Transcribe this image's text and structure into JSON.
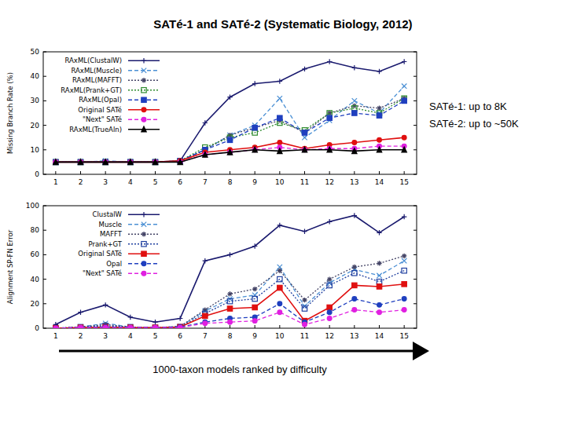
{
  "title": "SATé-1 and SATé-2 (Systematic Biology, 2012)",
  "notes": [
    "SATé-1: up to 8K",
    "SATé-2: up to ~50K"
  ],
  "caption": "1000-taxon models ranked by difficulty",
  "chart_data": [
    {
      "type": "line",
      "y_label": "Missing Branch Rate (%)",
      "x": [
        1,
        2,
        3,
        4,
        5,
        6,
        7,
        8,
        9,
        10,
        11,
        12,
        13,
        14,
        15
      ],
      "xlim": [
        0.5,
        15.5
      ],
      "xticks": [
        1,
        2,
        3,
        4,
        5,
        6,
        7,
        8,
        9,
        10,
        11,
        12,
        13,
        14,
        15
      ],
      "ylim": [
        0,
        50
      ],
      "yticks": [
        0,
        10,
        20,
        30,
        40,
        50
      ],
      "grid": false,
      "legend": "upper left",
      "series": [
        {
          "name": "RAxML(ClustalW)",
          "color": "#1a1a6e",
          "marker": "plus",
          "line_style": "solid",
          "values": [
            5,
            5,
            5,
            5,
            5,
            5.5,
            21,
            31.5,
            37,
            38,
            43,
            46,
            43.5,
            42,
            46
          ]
        },
        {
          "name": "RAxML(Muscle)",
          "color": "#4a8fd4",
          "marker": "x",
          "line_style": "dashed",
          "values": [
            5,
            5,
            5.5,
            5,
            5,
            5.5,
            10,
            16,
            20,
            31,
            15,
            22,
            30,
            25,
            36
          ]
        },
        {
          "name": "RAxML(MAFFT)",
          "color": "#444466",
          "marker": "asterisk",
          "line_style": "dotted",
          "values": [
            5,
            5,
            5,
            5,
            5,
            5.5,
            10,
            16,
            19,
            22,
            17,
            25,
            28,
            27,
            31
          ]
        },
        {
          "name": "RAxML(Prank+GT)",
          "color": "#2e8b2e",
          "marker": "square",
          "line_style": "dotted",
          "values": [
            5,
            5,
            5,
            5,
            5,
            5.5,
            11,
            15,
            17,
            21,
            18,
            25,
            27,
            25,
            31
          ]
        },
        {
          "name": "RAxML(Opal)",
          "color": "#1f3fbf",
          "marker": "filled-square",
          "line_style": "dashed",
          "values": [
            5,
            5,
            5,
            5,
            5,
            5.5,
            10,
            14,
            19,
            23,
            17,
            23,
            25,
            24,
            30
          ]
        },
        {
          "name": "Original SATé",
          "color": "#e01010",
          "marker": "circle",
          "line_style": "solid",
          "values": [
            5,
            5,
            5,
            5,
            5,
            5.5,
            9,
            10,
            11,
            13,
            10.5,
            12,
            13,
            14,
            15
          ]
        },
        {
          "name": "\"Next\" SATé",
          "color": "#e020e0",
          "marker": "circle",
          "line_style": "dashed",
          "values": [
            5,
            5,
            5,
            5,
            5,
            5,
            8,
            9,
            10,
            11,
            10,
            10.5,
            10.5,
            11.5,
            11.5
          ]
        },
        {
          "name": "RAxML(TrueAln)",
          "color": "#000000",
          "marker": "triangle",
          "line_style": "solid",
          "values": [
            5,
            5,
            5,
            5,
            5,
            5,
            8,
            9,
            10,
            9.5,
            10,
            10,
            9.5,
            10,
            10
          ]
        }
      ]
    },
    {
      "type": "line",
      "y_label": "Alignment SP-FN Error",
      "x": [
        1,
        2,
        3,
        4,
        5,
        6,
        7,
        8,
        9,
        10,
        11,
        12,
        13,
        14,
        15
      ],
      "xlim": [
        0.5,
        15.5
      ],
      "xticks": [
        1,
        2,
        3,
        4,
        5,
        6,
        7,
        8,
        9,
        10,
        11,
        12,
        13,
        14,
        15
      ],
      "ylim": [
        0,
        100
      ],
      "yticks": [
        0,
        20,
        40,
        60,
        80,
        100
      ],
      "grid": false,
      "legend": "upper left",
      "series": [
        {
          "name": "ClustalW",
          "color": "#1a1a6e",
          "marker": "plus",
          "line_style": "solid",
          "values": [
            3,
            13,
            19,
            9,
            5,
            8,
            55,
            60,
            67,
            84,
            79,
            87,
            92,
            78,
            91
          ]
        },
        {
          "name": "Muscle",
          "color": "#4a8fd4",
          "marker": "x",
          "line_style": "dashed",
          "values": [
            0,
            1,
            4,
            1,
            0.5,
            1.5,
            14,
            24,
            27,
            50,
            18,
            37,
            48,
            43,
            55
          ]
        },
        {
          "name": "MAFFT",
          "color": "#444466",
          "marker": "asterisk",
          "line_style": "dotted",
          "values": [
            0,
            1,
            3,
            1,
            0.5,
            1.5,
            15,
            28,
            32,
            47,
            23,
            40,
            50,
            53,
            59
          ]
        },
        {
          "name": "Prank+GT",
          "color": "#2040a0",
          "marker": "square",
          "line_style": "dotted",
          "values": [
            0,
            1,
            2,
            1,
            0.5,
            1,
            12,
            22,
            24,
            40,
            16,
            35,
            45,
            38,
            47
          ]
        },
        {
          "name": "Original SATé",
          "color": "#e01010",
          "marker": "filled-square",
          "line_style": "solid",
          "values": [
            0,
            0.5,
            1,
            0.5,
            0.5,
            1,
            10,
            16,
            17,
            33,
            6,
            17,
            35,
            34,
            36
          ]
        },
        {
          "name": "Opal",
          "color": "#1f3fbf",
          "marker": "circle",
          "line_style": "dashed",
          "values": [
            0,
            0.5,
            1,
            0.5,
            0.5,
            1,
            5,
            8,
            9,
            20,
            5,
            13,
            24,
            19,
            24
          ]
        },
        {
          "name": "\"Next\" SATé",
          "color": "#e020e0",
          "marker": "circle",
          "line_style": "dashed",
          "values": [
            0,
            0.5,
            0.5,
            0.5,
            0.5,
            0.5,
            4,
            5,
            6,
            13,
            3,
            8,
            15,
            13,
            15
          ]
        }
      ]
    }
  ]
}
